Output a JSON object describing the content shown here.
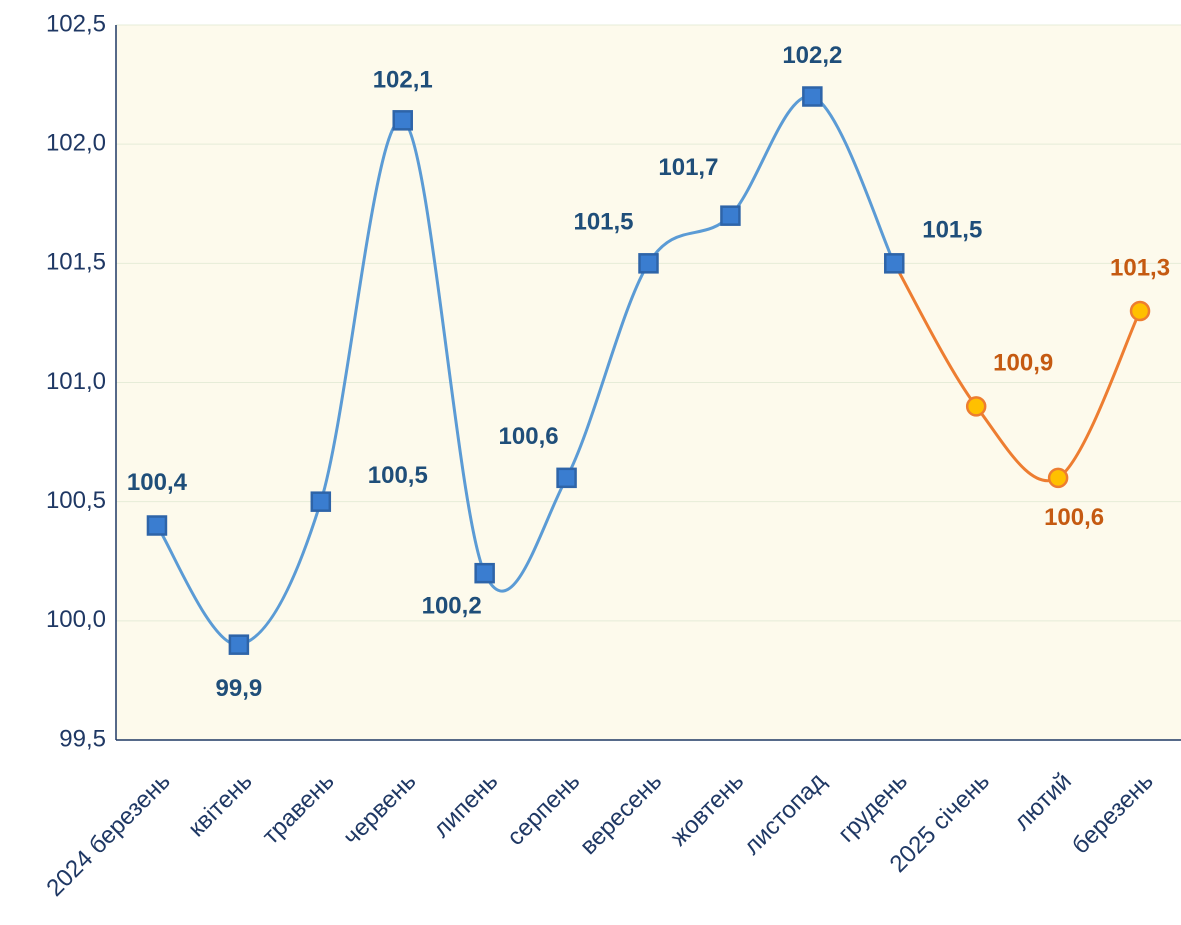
{
  "chart_data": {
    "type": "line",
    "categories": [
      "2024 березень",
      "квітень",
      "травень",
      "червень",
      "липень",
      "серпень",
      "вересень",
      "жовтень",
      "листопад",
      "грудень",
      "2025  січень",
      "лютий",
      "березень"
    ],
    "series": [
      {
        "color": "#5b9bd5",
        "marker": "square",
        "marker_fill": "#3a7dd0",
        "marker_stroke": "#2e64a8",
        "label_color": "#1f4e79",
        "values": [
          100.4,
          99.9,
          100.5,
          102.1,
          100.2,
          100.6,
          101.5,
          101.7,
          102.2,
          101.5,
          null,
          null,
          null
        ],
        "value_labels": [
          "100,4",
          "99,9",
          "100,5",
          "102,1",
          "100,2",
          "100,6",
          "101,5",
          "101,7",
          "102,2",
          "101,5",
          null,
          null,
          null
        ]
      },
      {
        "color": "#ed7d31",
        "marker": "circle",
        "marker_fill": "#ffc000",
        "marker_stroke": "#ed7d31",
        "label_color": "#c55a11",
        "values": [
          null,
          null,
          null,
          null,
          null,
          null,
          null,
          null,
          null,
          101.5,
          100.9,
          100.6,
          101.3
        ],
        "value_labels": [
          null,
          null,
          null,
          null,
          null,
          null,
          null,
          null,
          null,
          null,
          "100,9",
          "100,6",
          "101,3"
        ]
      }
    ],
    "ylim": [
      99.5,
      102.5
    ],
    "yticks": [
      {
        "value": 99.5,
        "label": "99,5"
      },
      {
        "value": 100,
        "label": "100,0"
      },
      {
        "value": 100.5,
        "label": "100,5"
      },
      {
        "value": 101,
        "label": "101,0"
      },
      {
        "value": 101.5,
        "label": "101,5"
      },
      {
        "value": 102,
        "label": "102,0"
      },
      {
        "value": 102.5,
        "label": "102,5"
      }
    ],
    "grid": true,
    "smooth": true
  }
}
